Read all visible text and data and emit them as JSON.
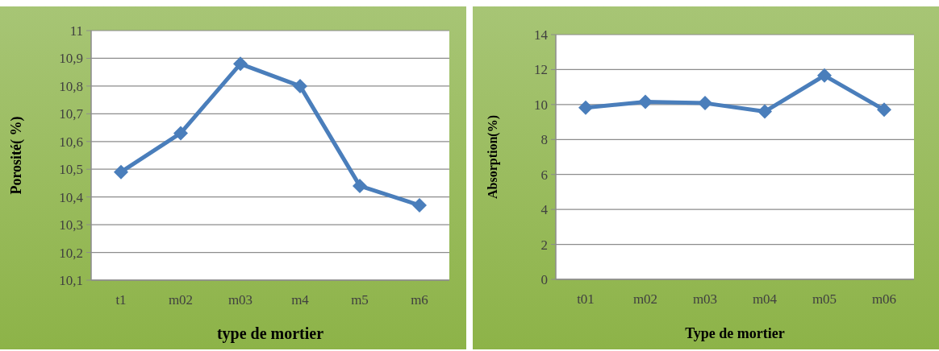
{
  "chart_data": [
    {
      "type": "line",
      "xlabel": "type de mortier",
      "ylabel": "Porosité( %)",
      "categories": [
        "t1",
        "m02",
        "m03",
        "m4",
        "m5",
        "m6"
      ],
      "series": [
        {
          "color": "#4a7ebb",
          "values": [
            10.49,
            10.63,
            10.88,
            10.8,
            10.44,
            10.37
          ]
        }
      ],
      "ylim": [
        10.1,
        11
      ],
      "yticks": [
        {
          "value": 10.1,
          "label": "10,1"
        },
        {
          "value": 10.2,
          "label": "10,2"
        },
        {
          "value": 10.3,
          "label": "10,3"
        },
        {
          "value": 10.4,
          "label": "10,4"
        },
        {
          "value": 10.5,
          "label": "10,5"
        },
        {
          "value": 10.6,
          "label": "10,6"
        },
        {
          "value": 10.7,
          "label": "10,7"
        },
        {
          "value": 10.8,
          "label": "10,8"
        },
        {
          "value": 10.9,
          "label": "10,9"
        },
        11
      ],
      "grid": "y",
      "marker": "diamond"
    },
    {
      "type": "line",
      "xlabel": "Type de mortier",
      "ylabel": "Absorption(%)",
      "categories": [
        "t01",
        "m02",
        "m03",
        "m04",
        "m05",
        "m06"
      ],
      "series": [
        {
          "color": "#4a7ebb",
          "values": [
            9.82,
            10.15,
            10.08,
            9.6,
            11.66,
            9.7
          ]
        }
      ],
      "ylim": [
        0,
        14
      ],
      "yticks": [
        0,
        2,
        4,
        6,
        8,
        10,
        12,
        14
      ],
      "grid": "y",
      "marker": "diamond"
    }
  ]
}
